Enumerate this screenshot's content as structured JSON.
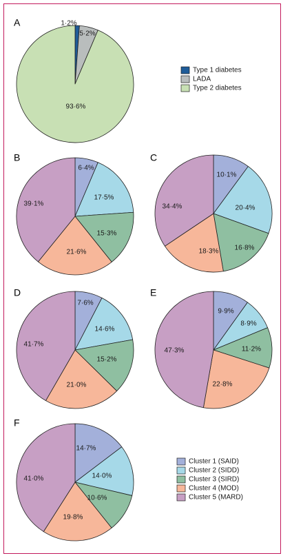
{
  "colors": {
    "frame": "#c2185b",
    "slice_stroke": "#1f1f1f",
    "type1": "#1f5c99",
    "lada": "#b9bdbd",
    "type2": "#c8e0b4",
    "cluster1": "#a3b0da",
    "cluster2": "#a6d9e8",
    "cluster3": "#8fbfa1",
    "cluster4": "#f7b79a",
    "cluster5": "#c79fc4"
  },
  "chart_data": [
    {
      "type": "pie",
      "panel": "A",
      "categories": [
        "Type 1 diabetes",
        "LADA",
        "Type 2 diabetes"
      ],
      "values": [
        1.2,
        5.2,
        93.6
      ],
      "labels": [
        "1·2%",
        "5·2%",
        "93·6%"
      ],
      "legend": [
        "Type 1 diabetes",
        "LADA",
        "Type 2 diabetes"
      ],
      "legend_position": "right"
    },
    {
      "type": "pie",
      "panel": "B",
      "categories": [
        "Cluster 1 (SAID)",
        "Cluster 2 (SIDD)",
        "Cluster 3 (SIRD)",
        "Cluster 4 (MOD)",
        "Cluster 5 (MARD)"
      ],
      "values": [
        6.4,
        17.5,
        15.3,
        21.6,
        39.1
      ],
      "labels": [
        "6·4%",
        "17·5%",
        "15·3%",
        "21·6%",
        "39·1%"
      ]
    },
    {
      "type": "pie",
      "panel": "C",
      "categories": [
        "Cluster 1 (SAID)",
        "Cluster 2 (SIDD)",
        "Cluster 3 (SIRD)",
        "Cluster 4 (MOD)",
        "Cluster 5 (MARD)"
      ],
      "values": [
        10.1,
        20.4,
        16.8,
        18.3,
        34.4
      ],
      "labels": [
        "10·1%",
        "20·4%",
        "16·8%",
        "18·3%",
        "34·4%"
      ]
    },
    {
      "type": "pie",
      "panel": "D",
      "categories": [
        "Cluster 1 (SAID)",
        "Cluster 2 (SIDD)",
        "Cluster 3 (SIRD)",
        "Cluster 4 (MOD)",
        "Cluster 5 (MARD)"
      ],
      "values": [
        7.6,
        14.6,
        15.2,
        21.0,
        41.7
      ],
      "labels": [
        "7·6%",
        "14·6%",
        "15·2%",
        "21·0%",
        "41·7%"
      ]
    },
    {
      "type": "pie",
      "panel": "E",
      "categories": [
        "Cluster 1 (SAID)",
        "Cluster 2 (SIDD)",
        "Cluster 3 (SIRD)",
        "Cluster 4 (MOD)",
        "Cluster 5 (MARD)"
      ],
      "values": [
        9.9,
        8.9,
        11.2,
        22.8,
        47.3
      ],
      "labels": [
        "9·9%",
        "8·9%",
        "11·2%",
        "22·8%",
        "47·3%"
      ]
    },
    {
      "type": "pie",
      "panel": "F",
      "categories": [
        "Cluster 1 (SAID)",
        "Cluster 2 (SIDD)",
        "Cluster 3 (SIRD)",
        "Cluster 4 (MOD)",
        "Cluster 5 (MARD)"
      ],
      "values": [
        14.7,
        14.0,
        10.6,
        19.8,
        41.0
      ],
      "labels": [
        "14·7%",
        "14·0%",
        "10·6%",
        "19·8%",
        "41·0%"
      ],
      "legend": [
        "Cluster 1 (SAID)",
        "Cluster 2 (SIDD)",
        "Cluster 3 (SIRD)",
        "Cluster 4 (MOD)",
        "Cluster 5 (MARD)"
      ],
      "legend_position": "right"
    }
  ]
}
